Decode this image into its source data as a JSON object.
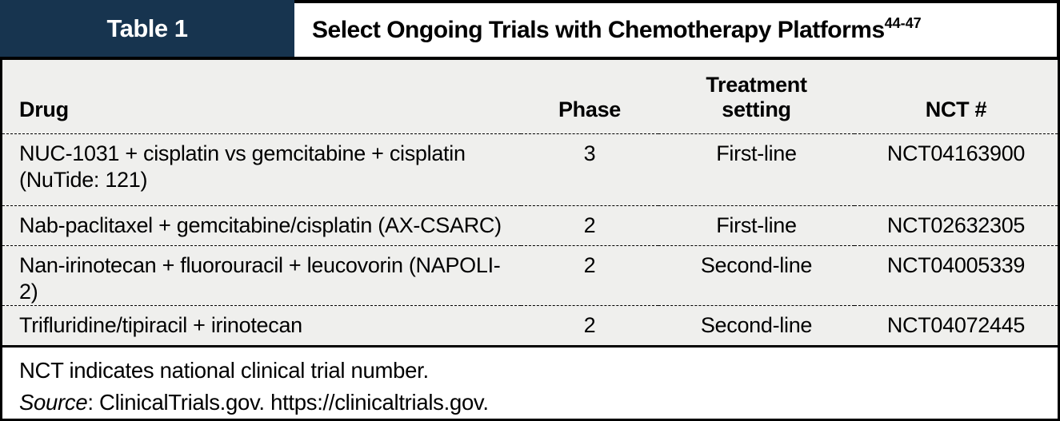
{
  "table": {
    "label": "Table 1",
    "title": "Select Ongoing Trials with Chemotherapy Platforms",
    "title_superscript": "44-47",
    "columns": {
      "drug": "Drug",
      "phase": "Phase",
      "setting": "Treatment setting",
      "nct": "NCT #"
    },
    "rows": [
      {
        "drug": "NUC-1031 + cisplatin vs gemcitabine + cisplatin (NuTide: 121)",
        "phase": "3",
        "setting": "First-line",
        "nct": "NCT04163900"
      },
      {
        "drug": "Nab-paclitaxel + gemcitabine/cisplatin (AX-CSARC)",
        "phase": "2",
        "setting": "First-line",
        "nct": "NCT02632305"
      },
      {
        "drug": "Nan-irinotecan + fluorouracil + leucovorin (NAPOLI-2)",
        "phase": "2",
        "setting": "Second-line",
        "nct": "NCT04005339"
      },
      {
        "drug": "Trifluridine/tipiracil + irinotecan",
        "phase": "2",
        "setting": "Second-line",
        "nct": "NCT04072445"
      }
    ],
    "footnotes": {
      "abbreviation_note": "NCT indicates national clinical trial number.",
      "source_label": "Source",
      "source_text": ": ClinicalTrials.gov. https://clinicaltrials.gov."
    },
    "colors": {
      "label_background": "#17344f",
      "label_text": "#ffffff",
      "body_background": "#efefed",
      "border": "#000000"
    }
  }
}
